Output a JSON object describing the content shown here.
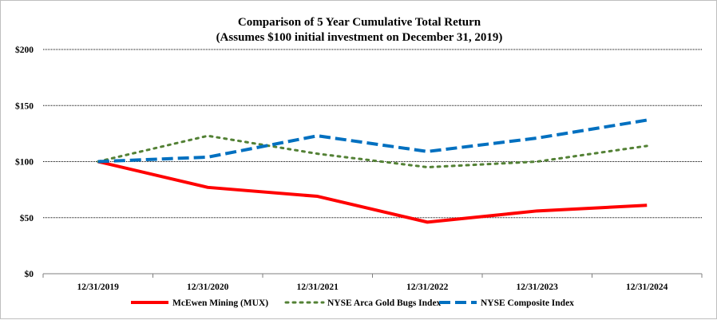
{
  "chart_data": {
    "type": "line",
    "title": "Comparison of 5 Year Cumulative Total Return",
    "subtitle": "(Assumes $100 initial investment on December 31, 2019)",
    "categories": [
      "12/31/2019",
      "12/31/2020",
      "12/31/2021",
      "12/31/2022",
      "12/31/2023",
      "12/31/2024"
    ],
    "y_ticks": [
      0,
      50,
      100,
      150,
      200
    ],
    "y_tick_labels": [
      "$0",
      "$50",
      "$100",
      "$150",
      "$200"
    ],
    "ylim": [
      0,
      200
    ],
    "grid": true,
    "legend_position": "bottom",
    "series": [
      {
        "name": "McEwen Mining (MUX)",
        "values": [
          100,
          77,
          69,
          46,
          56,
          61
        ],
        "color": "#ff0000",
        "style": "solid"
      },
      {
        "name": "NYSE Arca Gold Bugs Index",
        "values": [
          100,
          123,
          107,
          95,
          100,
          114
        ],
        "color": "#538135",
        "style": "dotted"
      },
      {
        "name": "NYSE Composite Index",
        "values": [
          100,
          104,
          123,
          109,
          121,
          137
        ],
        "color": "#0070c0",
        "style": "dashed"
      }
    ]
  }
}
